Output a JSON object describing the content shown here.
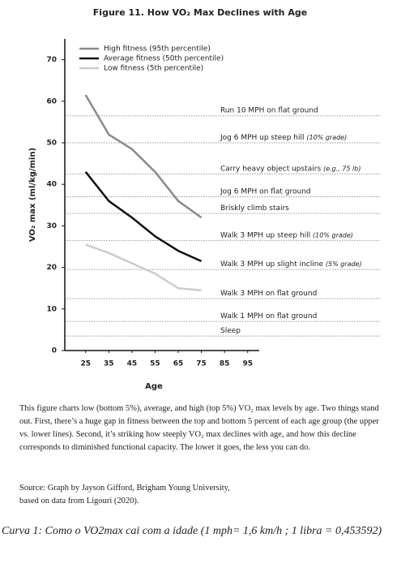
{
  "chart_data": {
    "type": "line",
    "title": "Figure 11. How VO₂ Max Declines with Age",
    "x_label": "Age",
    "y_label": "VO₂ max (ml/kg/min)",
    "x": [
      25,
      35,
      45,
      55,
      65,
      75
    ],
    "series": [
      {
        "name": "High fitness (95th percentile)",
        "color": "#8a8a8a",
        "values": [
          61.5,
          52,
          48.5,
          43,
          36,
          32
        ]
      },
      {
        "name": "Average fitness (50th percentile)",
        "color": "#111111",
        "values": [
          43,
          36,
          32,
          27.5,
          24,
          21.5
        ]
      },
      {
        "name": "Low fitness (5th percentile)",
        "color": "#cccccc",
        "values": [
          25.5,
          23.5,
          21,
          18.5,
          15,
          14.5
        ]
      }
    ],
    "xlim": [
      16,
      100
    ],
    "xticks": [
      25,
      35,
      45,
      55,
      65,
      75,
      85,
      95
    ],
    "ylim": [
      0,
      75
    ],
    "yticks": [
      0,
      10,
      20,
      30,
      40,
      50,
      60,
      70
    ],
    "legend": "upper left",
    "reference_lines": [
      {
        "value": 56.5,
        "label": "Run 10 MPH on flat ground"
      },
      {
        "value": 50,
        "label": "Jog 6 MPH up steep hill",
        "note": "(10% grade)"
      },
      {
        "value": 42.5,
        "label": "Carry heavy object upstairs",
        "note": "(e.g., 75 lb)"
      },
      {
        "value": 37,
        "label": "Jog 6 MPH on flat ground"
      },
      {
        "value": 33,
        "label": "Briskly climb stairs"
      },
      {
        "value": 26.5,
        "label": "Walk 3 MPH up steep hill",
        "note": "(10% grade)"
      },
      {
        "value": 19.5,
        "label": "Walk 3 MPH up slight incline",
        "note": "(5% grade)"
      },
      {
        "value": 12.5,
        "label": "Walk 3 MPH on flat ground"
      },
      {
        "value": 7,
        "label": "Walk 1 MPH on flat ground"
      },
      {
        "value": 3.5,
        "label": "Sleep"
      }
    ]
  },
  "description": "This figure charts low (bottom 5%), average, and high (top 5%) VO₂ max levels by age. Two things stand out. First, there’s a huge gap in fitness between the top and bottom 5 percent of each age group (the upper vs. lower lines). Second, it’s striking how steeply VO₂ max declines with age, and how this decline corresponds to diminished functional capacity. The lower it goes, the less you can do.",
  "source": [
    "Source: Graph by Jayson Gifford, Brigham Young University,",
    "based on data from Ligouri (2020)."
  ],
  "caption": "Curva 1: Como o VO2max cai com a idade (1 mph= 1,6 km/h ; 1 libra = 0,453592)"
}
